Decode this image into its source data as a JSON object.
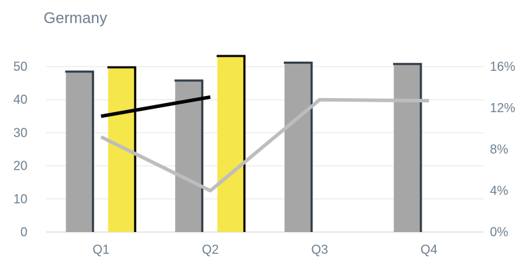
{
  "chart_data": {
    "type": "bar",
    "title": "Germany",
    "categories": [
      "Q1",
      "Q2",
      "Q3",
      "Q4"
    ],
    "y_left": {
      "ticks": [
        0,
        10,
        20,
        30,
        40,
        50
      ],
      "ylim": [
        0,
        50
      ],
      "tick_labels": [
        "0",
        "10",
        "20",
        "30",
        "40",
        "50"
      ]
    },
    "y_right": {
      "ticks": [
        0,
        4,
        8,
        12,
        16
      ],
      "ylim": [
        0,
        16
      ],
      "tick_labels": [
        "0%",
        "4%",
        "8%",
        "12%",
        "16%"
      ]
    },
    "series": [
      {
        "type": "bar",
        "axis": "left",
        "color": "#a6a6a6",
        "edge_color": "#323e4a",
        "values": [
          48.5,
          45.8,
          51.2,
          50.8
        ]
      },
      {
        "type": "bar",
        "axis": "left",
        "color": "#f5e64b",
        "edge_color": "#000000",
        "values": [
          49.8,
          53.2,
          null,
          null
        ]
      },
      {
        "type": "line",
        "axis": "left",
        "color": "#000000",
        "values": [
          35.0,
          40.8,
          null,
          null
        ]
      },
      {
        "type": "line",
        "axis": "right",
        "color": "#bdbdbd",
        "values": [
          9.2,
          4.0,
          12.8,
          12.7
        ]
      }
    ],
    "grid": true,
    "legend": "none"
  }
}
